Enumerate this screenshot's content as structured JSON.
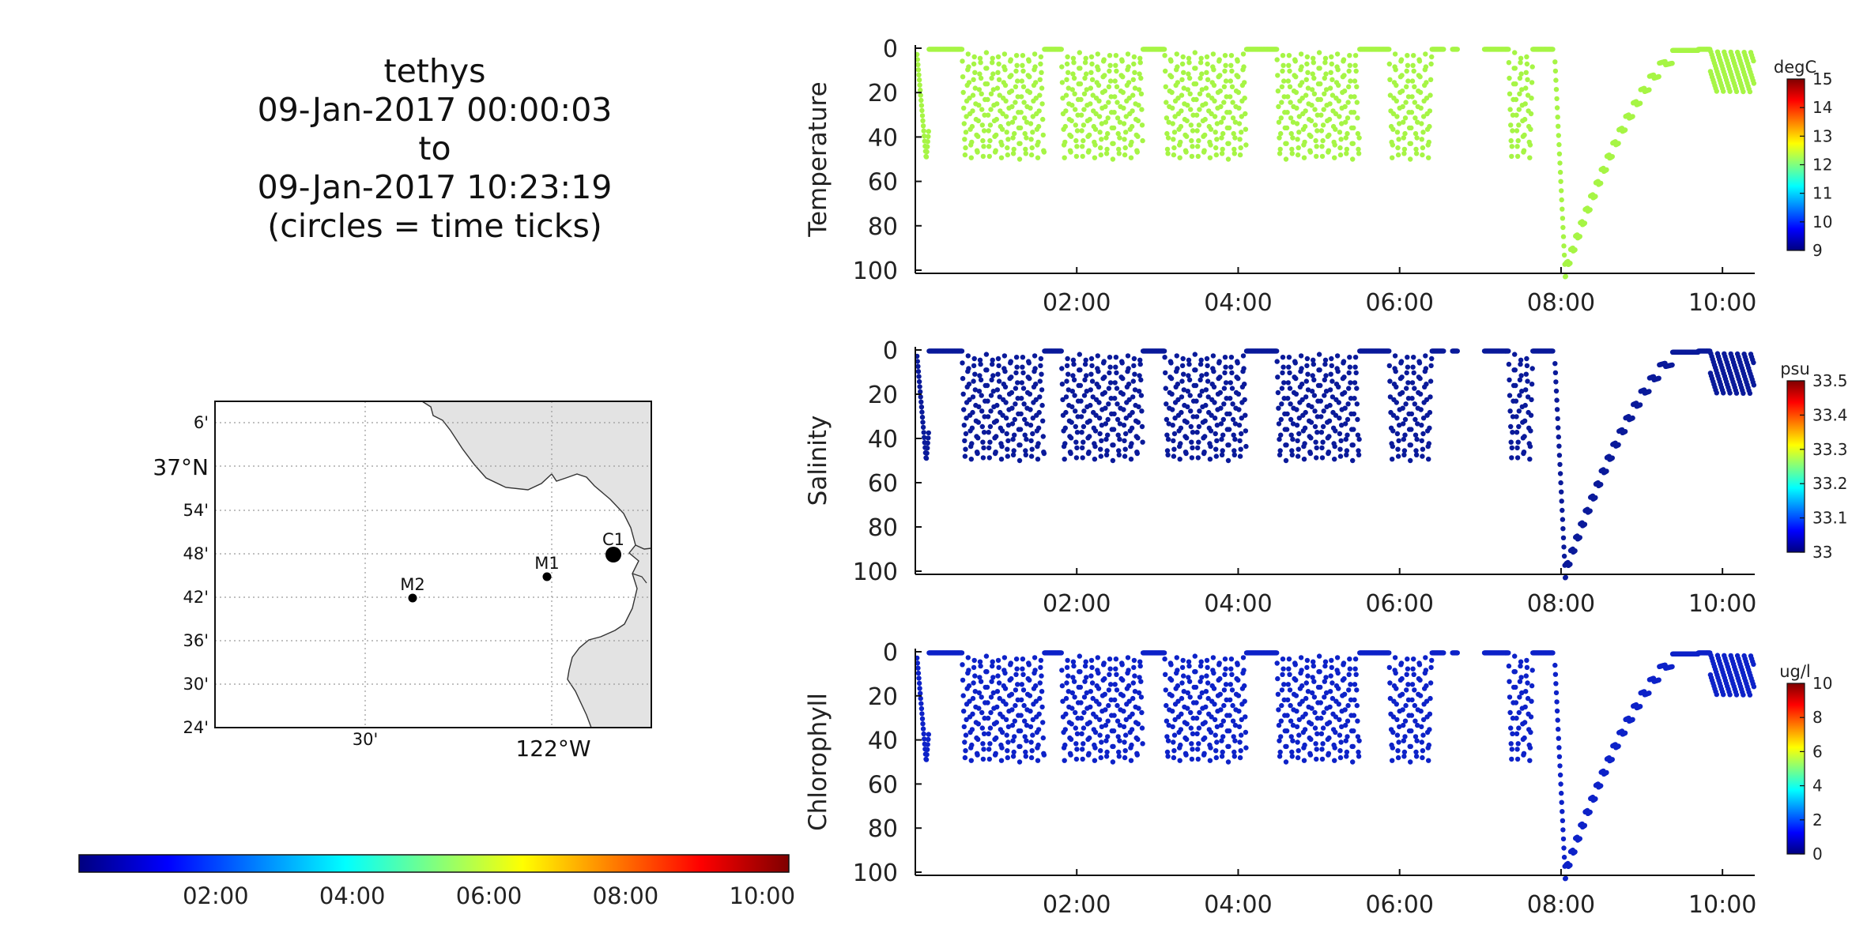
{
  "title": {
    "lines": [
      "tethys",
      "09-Jan-2017 00:00:03",
      "to",
      "09-Jan-2017 10:23:19",
      "(circles = time ticks)"
    ]
  },
  "colors": {
    "temperature_points": "#a6f545",
    "salinity_points": "#0a1a9a",
    "chlorophyll_points": "#0d22c8",
    "map_land": "#e3e3e3",
    "grid": "#9a9a9a"
  },
  "map": {
    "lat_labels": [
      "6'",
      "37°N",
      "54'",
      "48'",
      "42'",
      "36'",
      "30'",
      "24'"
    ],
    "lon_labels": [
      "30'",
      "122°W"
    ],
    "stations": [
      {
        "name": "C1",
        "lon": -121.85,
        "lat": 36.8,
        "size": "large"
      },
      {
        "name": "M1",
        "lon": -122.03,
        "lat": 36.75,
        "size": "small"
      },
      {
        "name": "M2",
        "lon": -122.39,
        "lat": 36.69,
        "size": "small"
      }
    ]
  },
  "time_colorbar": {
    "colormap": "jet",
    "tick_labels": [
      "02:00",
      "04:00",
      "06:00",
      "08:00",
      "10:00"
    ]
  },
  "chart_data": [
    {
      "type": "scatter",
      "ylabel": "Temperature",
      "colorbar": {
        "unit": "degC",
        "ticks": [
          "15",
          "14",
          "13",
          "12",
          "11",
          "10",
          "9"
        ]
      },
      "x_ticks": [
        "02:00",
        "04:00",
        "06:00",
        "08:00",
        "10:00"
      ],
      "y_ticks": [
        "0",
        "20",
        "40",
        "60",
        "80",
        "100"
      ],
      "ylim": [
        0,
        100
      ],
      "y_inverted": true,
      "xlim_hours": [
        0,
        10.4
      ]
    },
    {
      "type": "scatter",
      "ylabel": "Salinity",
      "colorbar": {
        "unit": "psu",
        "ticks": [
          "33.5",
          "33.4",
          "33.3",
          "33.2",
          "33.1",
          "33"
        ]
      },
      "x_ticks": [
        "02:00",
        "04:00",
        "06:00",
        "08:00",
        "10:00"
      ],
      "y_ticks": [
        "0",
        "20",
        "40",
        "60",
        "80",
        "100"
      ],
      "ylim": [
        0,
        100
      ],
      "y_inverted": true,
      "xlim_hours": [
        0,
        10.4
      ]
    },
    {
      "type": "scatter",
      "ylabel": "Chlorophyll",
      "colorbar": {
        "unit": "ug/l",
        "ticks": [
          "10",
          "8",
          "6",
          "4",
          "2",
          "0"
        ]
      },
      "x_ticks": [
        "02:00",
        "04:00",
        "06:00",
        "08:00",
        "10:00"
      ],
      "y_ticks": [
        "0",
        "20",
        "40",
        "60",
        "80",
        "100"
      ],
      "ylim": [
        0,
        100
      ],
      "y_inverted": true,
      "xlim_hours": [
        0,
        10.4
      ]
    }
  ]
}
